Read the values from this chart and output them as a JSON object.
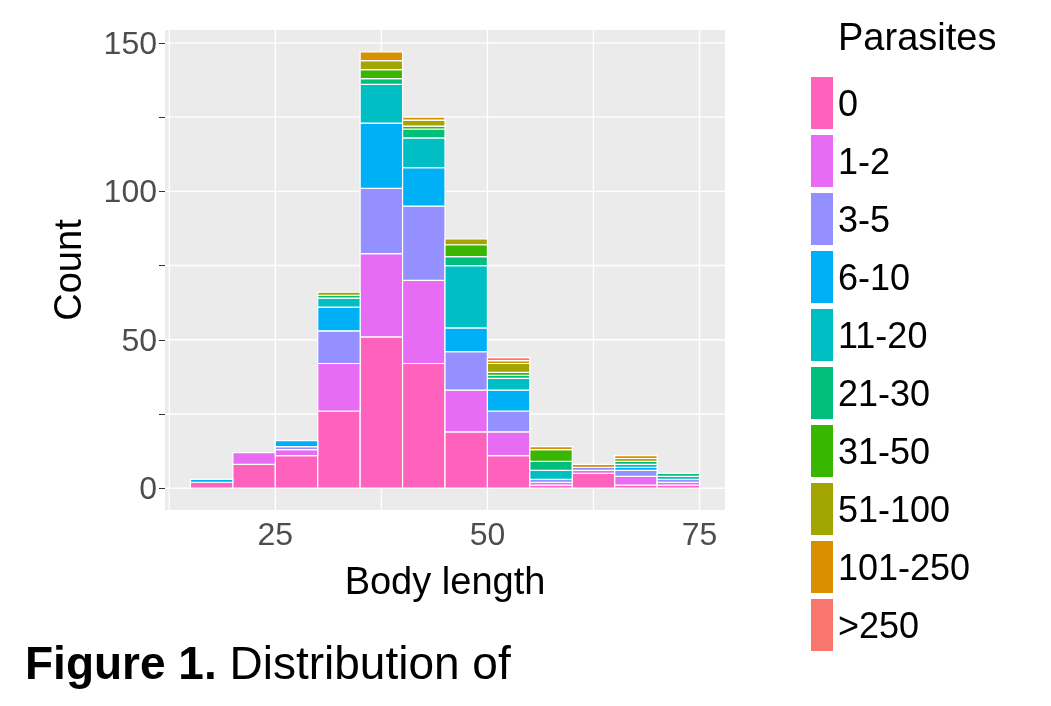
{
  "chart_data": {
    "type": "bar",
    "xlabel": "Body length",
    "ylabel": "Count",
    "legend_title": "Parasites",
    "annotations": [
      "Figure 1. Distribution of"
    ],
    "x": [
      17.5,
      22.5,
      27.5,
      32.5,
      37.5,
      42.5,
      47.5,
      52.5,
      57.5,
      62.5,
      67.5,
      72.5
    ],
    "stacked": true,
    "series": [
      {
        "name": "0",
        "color": "#ff62bc",
        "values": [
          2,
          8,
          11,
          26,
          51,
          42,
          19,
          11,
          1,
          5,
          1,
          1
        ]
      },
      {
        "name": "1-2",
        "color": "#e76bf3",
        "values": [
          0,
          4,
          2,
          16,
          28,
          28,
          14,
          8,
          1,
          1,
          3,
          1
        ]
      },
      {
        "name": "3-5",
        "color": "#9590ff",
        "values": [
          0,
          0,
          1,
          11,
          22,
          25,
          13,
          7,
          1,
          1,
          2,
          1
        ]
      },
      {
        "name": "6-10",
        "color": "#00b0f6",
        "values": [
          1,
          0,
          2,
          8,
          22,
          13,
          8,
          7,
          0,
          0,
          1,
          0
        ]
      },
      {
        "name": "11-20",
        "color": "#00bfc4",
        "values": [
          0,
          0,
          0,
          3,
          13,
          10,
          21,
          4,
          3,
          0,
          1,
          1
        ]
      },
      {
        "name": "21-30",
        "color": "#00bf7d",
        "values": [
          0,
          0,
          0,
          1,
          2,
          3,
          3,
          1,
          3,
          0,
          1,
          1
        ]
      },
      {
        "name": "31-50",
        "color": "#39b600",
        "values": [
          0,
          0,
          0,
          0,
          3,
          1,
          4,
          1,
          4,
          0,
          0,
          0
        ]
      },
      {
        "name": "51-100",
        "color": "#a3a500",
        "values": [
          0,
          0,
          0,
          1,
          3,
          2,
          2,
          3,
          0,
          0,
          1,
          0
        ]
      },
      {
        "name": "101-250",
        "color": "#d89000",
        "values": [
          0,
          0,
          0,
          0,
          3,
          1,
          0,
          1,
          1,
          1,
          1,
          0
        ]
      },
      {
        "name": ">250",
        "color": "#f8766d",
        "values": [
          0,
          0,
          0,
          0,
          0,
          0,
          0,
          1,
          0,
          0,
          0,
          0
        ]
      }
    ],
    "xlim": [
      12,
      78
    ],
    "xticks": [
      {
        "value": 12.5,
        "label": null
      },
      25,
      {
        "value": 37.5,
        "label": null
      },
      50,
      {
        "value": 62.5,
        "label": null
      },
      75
    ],
    "ylim": [
      -7.35,
      154.35
    ],
    "yticks": [
      0,
      {
        "value": 25,
        "label": null
      },
      50,
      {
        "value": 75,
        "label": null
      },
      100,
      {
        "value": 125,
        "label": null
      },
      150
    ],
    "grid": true,
    "legend": "right"
  }
}
